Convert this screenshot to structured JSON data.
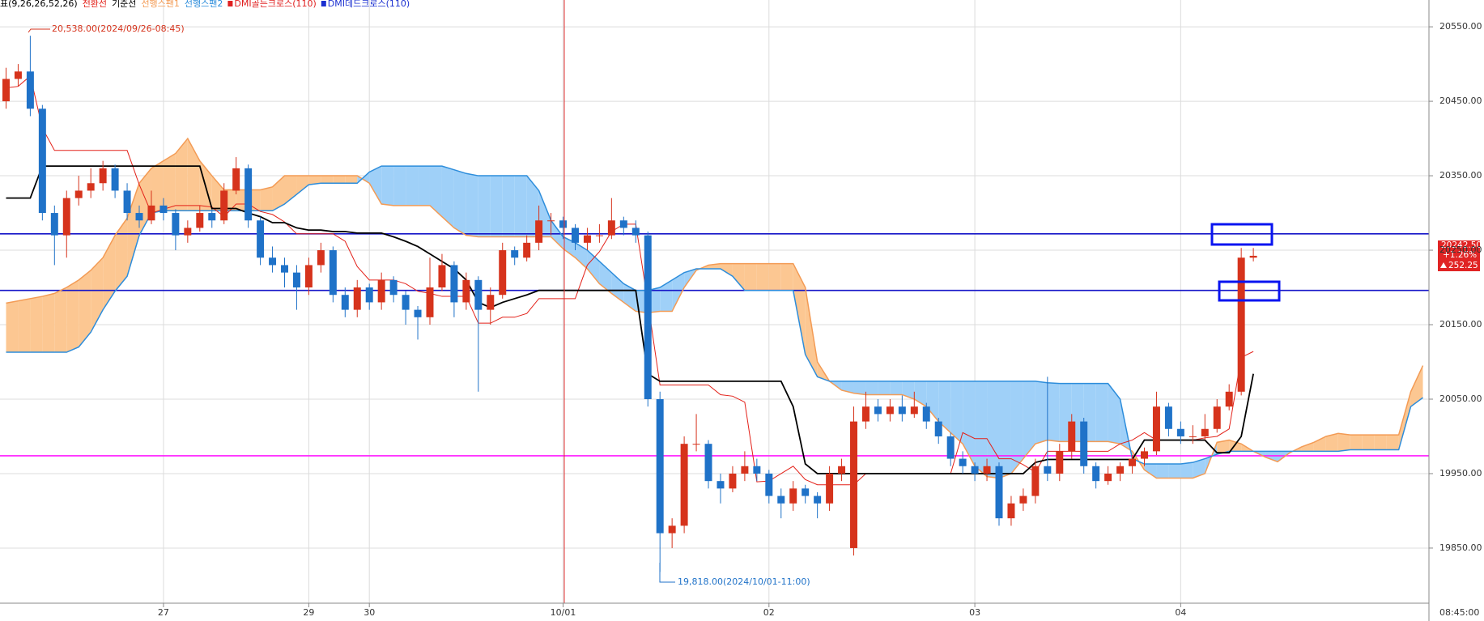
{
  "chart_data": {
    "type": "candlestick",
    "indicator_label": "표(9,26,26,52,26)",
    "signals": [
      {
        "name": "DMI골든크로스(110)",
        "color": "#e02020"
      },
      {
        "name": "DMI데드크로스(110)",
        "color": "#1a2fd0"
      }
    ],
    "categories": [
      null,
      null,
      null,
      null,
      null,
      null,
      null,
      null,
      null,
      null,
      null,
      null,
      null,
      "27",
      null,
      null,
      null,
      null,
      null,
      null,
      null,
      null,
      null,
      null,
      null,
      "29",
      null,
      null,
      null,
      null,
      "30",
      null,
      null,
      null,
      null,
      null,
      null,
      null,
      null,
      null,
      null,
      null,
      null,
      null,
      null,
      null,
      "10/01",
      null,
      null,
      null,
      null,
      null,
      null,
      null,
      null,
      null,
      null,
      null,
      null,
      null,
      null,
      null,
      null,
      "02",
      null,
      null,
      null,
      null,
      null,
      null,
      null,
      null,
      null,
      null,
      null,
      null,
      null,
      null,
      null,
      null,
      "03",
      null,
      null,
      null,
      null,
      null,
      null,
      null,
      null,
      null,
      null,
      null,
      null,
      null,
      null,
      null,
      null,
      "04",
      null,
      null,
      null,
      null,
      null,
      null,
      null,
      null,
      null,
      null,
      null,
      null,
      null,
      null,
      null,
      null,
      null,
      null,
      null,
      null
    ],
    "x_axis_time": "08:45:00",
    "open": [
      20450,
      20480,
      20490,
      20440,
      20300,
      20270,
      20320,
      20330,
      20340,
      20360,
      20330,
      20300,
      20290,
      20310,
      20300,
      20270,
      20280,
      20300,
      20290,
      20330,
      20360,
      20290,
      20240,
      20230,
      20220,
      20200,
      20230,
      20250,
      20190,
      20170,
      20200,
      20180,
      20210,
      20190,
      20170,
      20160,
      20200,
      20230,
      20180,
      20210,
      20170,
      20190,
      20250,
      20240,
      20260,
      20290,
      20290,
      20280,
      20260,
      20270,
      20270,
      20290,
      20280,
      20270,
      20050,
      19870,
      19880,
      19990,
      19990,
      19940,
      19930,
      19950,
      19960,
      19950,
      19920,
      19910,
      19930,
      19920,
      19910,
      19950,
      19850,
      20020,
      20040,
      20030,
      20040,
      20030,
      20040,
      20020,
      20000,
      19970,
      19960,
      19950,
      19960,
      19890,
      19910,
      19920,
      19960,
      19950,
      19980,
      20020,
      19960,
      19940,
      19950,
      19960,
      19970,
      19980,
      20040,
      20010,
      20000,
      20000,
      20010,
      20040,
      20060,
      20240,
      null,
      null,
      null,
      null,
      null,
      null,
      null,
      null,
      null,
      null,
      null,
      null,
      null,
      null
    ],
    "high": [
      20495,
      20500,
      20538,
      20445,
      20310,
      20330,
      20350,
      20360,
      20370,
      20365,
      20340,
      20310,
      20330,
      20320,
      20305,
      20290,
      20310,
      20305,
      20340,
      20375,
      20365,
      20295,
      20255,
      20240,
      20230,
      20240,
      20260,
      20255,
      20200,
      20210,
      20205,
      20220,
      20215,
      20195,
      20175,
      20240,
      20245,
      20235,
      20220,
      20215,
      20200,
      20260,
      20255,
      20270,
      20310,
      20300,
      20295,
      20285,
      20280,
      20285,
      20320,
      20295,
      20290,
      20275,
      20060,
      19890,
      20000,
      20030,
      19995,
      19950,
      19960,
      19980,
      19970,
      19955,
      19930,
      19940,
      19935,
      19925,
      19960,
      19970,
      20040,
      20060,
      20050,
      20050,
      20055,
      20060,
      20045,
      20025,
      20005,
      19980,
      19965,
      19970,
      19965,
      19920,
      19930,
      19970,
      20080,
      19990,
      20030,
      20025,
      19965,
      19960,
      19965,
      19975,
      19985,
      20060,
      20045,
      20020,
      20015,
      20030,
      20050,
      20070,
      20253,
      20253,
      null,
      null,
      null,
      null,
      null,
      null,
      null,
      null,
      null,
      null,
      null,
      null,
      null,
      null
    ],
    "low": [
      20440,
      20470,
      20430,
      20290,
      20230,
      20240,
      20310,
      20320,
      20330,
      20320,
      20290,
      20280,
      20285,
      20290,
      20250,
      20260,
      20275,
      20280,
      20285,
      20325,
      20280,
      20230,
      20220,
      20200,
      20170,
      20190,
      20220,
      20180,
      20160,
      20160,
      20170,
      20170,
      20180,
      20150,
      20130,
      20150,
      20195,
      20160,
      20170,
      20060,
      20150,
      20185,
      20230,
      20235,
      20250,
      20270,
      20265,
      20250,
      20250,
      20260,
      20265,
      20270,
      20260,
      20040,
      19818,
      19850,
      19870,
      19980,
      19930,
      19910,
      19925,
      19940,
      19940,
      19910,
      19890,
      19900,
      19910,
      19890,
      19900,
      19940,
      19840,
      20010,
      20020,
      20020,
      20020,
      20025,
      20010,
      19990,
      19960,
      19950,
      19940,
      19940,
      19880,
      19880,
      19900,
      19910,
      19940,
      19940,
      19970,
      19950,
      19930,
      19935,
      19940,
      19950,
      19960,
      19975,
      20000,
      19990,
      19990,
      19995,
      20005,
      20035,
      20055,
      20235,
      null,
      null,
      null,
      null,
      null,
      null,
      null,
      null,
      null,
      null,
      null,
      null,
      null,
      null
    ],
    "close": [
      20480,
      20490,
      20440,
      20300,
      20270,
      20320,
      20330,
      20340,
      20360,
      20330,
      20300,
      20290,
      20310,
      20300,
      20270,
      20280,
      20300,
      20290,
      20330,
      20360,
      20290,
      20240,
      20230,
      20220,
      20200,
      20230,
      20250,
      20190,
      20170,
      20200,
      20180,
      20210,
      20190,
      20170,
      20160,
      20200,
      20230,
      20180,
      20210,
      20170,
      20190,
      20250,
      20240,
      20260,
      20290,
      20290,
      20280,
      20260,
      20270,
      20270,
      20290,
      20280,
      20270,
      20050,
      19870,
      19880,
      19990,
      19990,
      19940,
      19930,
      19950,
      19960,
      19950,
      19920,
      19910,
      19930,
      19920,
      19910,
      19950,
      19960,
      20020,
      20040,
      20030,
      20040,
      20030,
      20040,
      20020,
      20000,
      19970,
      19960,
      19950,
      19960,
      19890,
      19910,
      19920,
      19960,
      19950,
      19980,
      20020,
      19960,
      19940,
      19950,
      19960,
      19970,
      19980,
      20040,
      20010,
      20000,
      20000,
      20010,
      20040,
      20060,
      20240,
      20242.5,
      null,
      null,
      null,
      null,
      null,
      null,
      null,
      null,
      null,
      null,
      null,
      null,
      null,
      null
    ],
    "up_color": "#d6331c",
    "down_color": "#1f72c8",
    "series": [
      {
        "name": "전환선",
        "color": "#e32119",
        "width": 1,
        "values": [
          20468,
          20470,
          20484,
          20414,
          20384,
          20384,
          20384,
          20384,
          20384,
          20384,
          20384,
          20338,
          20300,
          20305,
          20310,
          20310,
          20310,
          20308,
          20295,
          20312,
          20312,
          20302,
          20298,
          20288,
          20272,
          20272,
          20272,
          20272,
          20262,
          20228,
          20210,
          20210,
          20210,
          20205,
          20195,
          20192,
          20188,
          20188,
          20188,
          20152,
          20152,
          20160,
          20160,
          20165,
          20185,
          20185,
          20185,
          20185,
          20230,
          20248,
          20275,
          20285,
          20285,
          20180,
          20069,
          20069,
          20069,
          20069,
          20069,
          20056,
          20054,
          20046,
          19939,
          19940,
          19950,
          19960,
          19942,
          19935,
          19935,
          19935,
          19935,
          19950,
          19950,
          19950,
          19950,
          19950,
          19950,
          19950,
          19950,
          20005,
          19997,
          19997,
          19970,
          19970,
          19962,
          19952,
          19980,
          19980,
          19980,
          19980,
          19980,
          19980,
          19990,
          19995,
          20005,
          19995,
          19995,
          19995,
          19995,
          19998,
          20000,
          20010,
          20106,
          20114,
          null,
          null,
          null,
          null,
          null,
          null,
          null,
          null,
          null,
          null,
          null,
          null,
          null,
          null
        ]
      },
      {
        "name": "기준선",
        "color": "#000000",
        "width": 1.8,
        "values": [
          20320,
          20320,
          20320,
          20363,
          20363,
          20363,
          20363,
          20363,
          20363,
          20363,
          20363,
          20363,
          20363,
          20363,
          20363,
          20363,
          20363,
          20306,
          20306,
          20306,
          20300,
          20295,
          20287,
          20287,
          20280,
          20277,
          20277,
          20275,
          20275,
          20273,
          20273,
          20273,
          20268,
          20262,
          20255,
          20245,
          20235,
          20225,
          20210,
          20180,
          20173,
          20180,
          20185,
          20190,
          20196,
          20196,
          20196,
          20196,
          20196,
          20196,
          20196,
          20196,
          20196,
          20084,
          20074,
          20074,
          20074,
          20074,
          20074,
          20074,
          20074,
          20074,
          20074,
          20074,
          20074,
          20040,
          19963,
          19950,
          19950,
          19950,
          19950,
          19950,
          19950,
          19950,
          19950,
          19950,
          19950,
          19950,
          19950,
          19950,
          19950,
          19950,
          19950,
          19950,
          19950,
          19965,
          19969,
          19969,
          19969,
          19969,
          19969,
          19969,
          19969,
          19969,
          19995,
          19995,
          19995,
          19995,
          19995,
          19995,
          19978,
          19978,
          20000,
          20084,
          null,
          null,
          null,
          null,
          null,
          null,
          null,
          null,
          null,
          null,
          null,
          null,
          null,
          null
        ]
      },
      {
        "name": "선행스팬1",
        "color": "#f39b55",
        "width": 1.5,
        "values": [
          20179,
          20182,
          20185,
          20188,
          20192,
          20200,
          20210,
          20223,
          20240,
          20270,
          20293,
          20340,
          20360,
          20370,
          20380,
          20400,
          20370,
          20350,
          20331,
          20331,
          20331,
          20331,
          20335,
          20350,
          20350,
          20350,
          20350,
          20350,
          20350,
          20350,
          20340,
          20312,
          20310,
          20310,
          20310,
          20310,
          20295,
          20280,
          20270,
          20268,
          20268,
          20268,
          20268,
          20268,
          20268,
          20268,
          20252,
          20240,
          20225,
          20205,
          20192,
          20180,
          20168,
          20166,
          20168,
          20168,
          20200,
          20223,
          20230,
          20232,
          20232,
          20232,
          20232,
          20232,
          20232,
          20232,
          20200,
          20100,
          20074,
          20062,
          20058,
          20056,
          20056,
          20056,
          20056,
          20050,
          20040,
          20020,
          20005,
          19990,
          19960,
          19946,
          19944,
          19950,
          19970,
          19990,
          19995,
          19993,
          19993,
          19993,
          19993,
          19993,
          19990,
          19980,
          19955,
          19944,
          19944,
          19944,
          19944,
          19950,
          19992,
          19995,
          19990,
          19980,
          19972,
          19966,
          19978,
          19986,
          19992,
          20000,
          20004,
          20002,
          20002,
          20002,
          20002,
          20002,
          20060,
          20095
        ]
      },
      {
        "name": "선행스팬2",
        "color": "#2d8ddb",
        "width": 1.5,
        "values": [
          20113,
          20113,
          20113,
          20113,
          20113,
          20113,
          20120,
          20140,
          20170,
          20195,
          20215,
          20270,
          20300,
          20303,
          20303,
          20303,
          20303,
          20303,
          20303,
          20303,
          20303,
          20303,
          20303,
          20312,
          20325,
          20338,
          20340,
          20340,
          20340,
          20340,
          20355,
          20363,
          20363,
          20363,
          20363,
          20363,
          20363,
          20358,
          20353,
          20350,
          20350,
          20350,
          20350,
          20350,
          20330,
          20290,
          20268,
          20260,
          20250,
          20235,
          20220,
          20205,
          20196,
          20196,
          20200,
          20210,
          20220,
          20225,
          20225,
          20225,
          20215,
          20196,
          20196,
          20196,
          20196,
          20196,
          20110,
          20080,
          20074,
          20074,
          20074,
          20074,
          20074,
          20074,
          20074,
          20074,
          20074,
          20074,
          20074,
          20074,
          20074,
          20074,
          20074,
          20074,
          20074,
          20074,
          20072,
          20071,
          20071,
          20071,
          20071,
          20071,
          20050,
          19970,
          19963,
          19963,
          19963,
          19963,
          19965,
          19970,
          19976,
          19980,
          19980,
          19980,
          19980,
          19980,
          19980,
          19980,
          19980,
          19980,
          19980,
          19982,
          19982,
          19982,
          19982,
          19982,
          20040,
          20052
        ]
      }
    ],
    "cloud_colors": {
      "bull": "#fcc792",
      "bear": "#9fd0f8"
    },
    "horizontal_lines": [
      {
        "value": 20272,
        "color": "#1414c8"
      },
      {
        "value": 20196,
        "color": "#1414c8"
      },
      {
        "value": 19974,
        "color": "#ff1aff"
      }
    ],
    "ylim": [
      19776,
      20586
    ],
    "yticks": [
      {
        "value": 19850,
        "label": "19850.00"
      },
      {
        "value": 19950,
        "label": "19950.00"
      },
      {
        "value": 20050,
        "label": "20050.00"
      },
      {
        "value": 20150,
        "label": "20150.00"
      },
      {
        "value": 20250,
        "label": "20250.00"
      },
      {
        "value": 20350,
        "label": "20350.00"
      },
      {
        "value": 20450,
        "label": "20450.00"
      },
      {
        "value": 20550,
        "label": "20550.00"
      }
    ],
    "grid": true,
    "annotations": {
      "high": "20,538.00(2024/09/26-08:45)",
      "low": "19,818.00(2024/10/01-11:00)"
    },
    "price_box": {
      "price": "20242.50",
      "change_pct": "+1.26%",
      "change": "252.25"
    }
  }
}
